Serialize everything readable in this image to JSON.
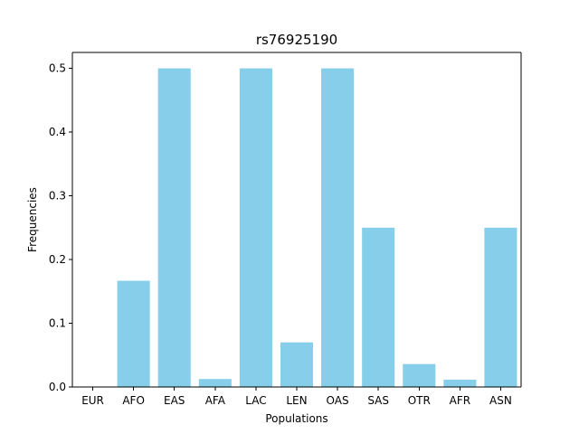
{
  "chart_data": {
    "type": "bar",
    "title": "rs76925190",
    "xlabel": "Populations",
    "ylabel": "Frequencies",
    "categories": [
      "EUR",
      "AFO",
      "EAS",
      "AFA",
      "LAC",
      "LEN",
      "OAS",
      "SAS",
      "OTR",
      "AFR",
      "ASN"
    ],
    "values": [
      0.0,
      0.1667,
      0.5,
      0.0125,
      0.5,
      0.07,
      0.5,
      0.25,
      0.036,
      0.0115,
      0.25
    ],
    "ylim": [
      0,
      0.525
    ],
    "yticks": [
      "0.0",
      "0.1",
      "0.2",
      "0.3",
      "0.4",
      "0.5"
    ],
    "grid": false,
    "colors": {
      "bar": "#87ceeb",
      "axis": "#000000"
    }
  }
}
